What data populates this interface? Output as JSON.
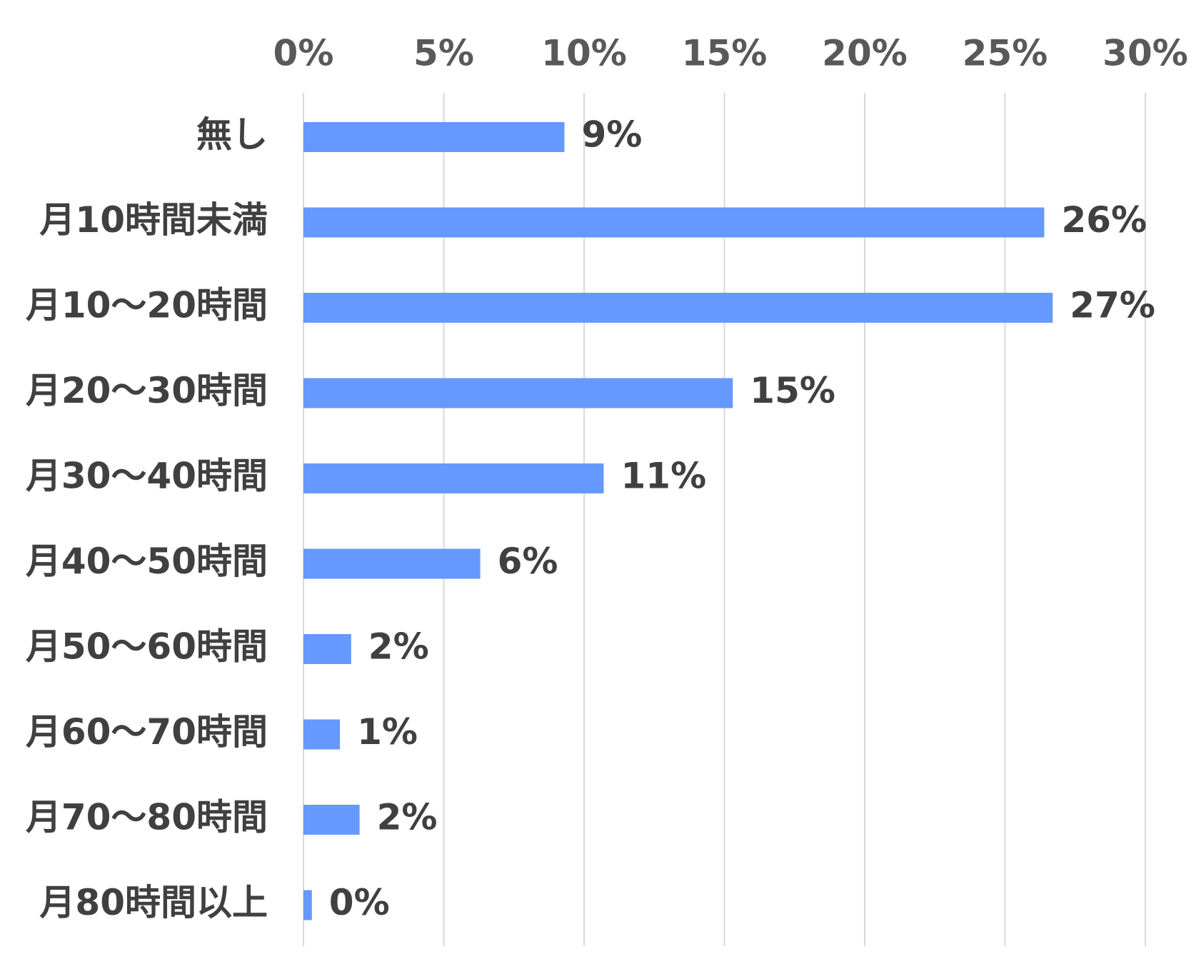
{
  "chart_data": {
    "type": "bar",
    "orientation": "horizontal",
    "categories": [
      "無し",
      "月10時間未満",
      "月10～20時間",
      "月20～30時間",
      "月30～40時間",
      "月40～50時間",
      "月50～60時間",
      "月60～70時間",
      "月70～80時間",
      "月80時間以上"
    ],
    "values": [
      9.3,
      26.4,
      26.7,
      15.3,
      10.7,
      6.3,
      1.7,
      1.3,
      2.0,
      0.3
    ],
    "data_labels": [
      "9%",
      "26%",
      "27%",
      "15%",
      "11%",
      "6%",
      "2%",
      "1%",
      "2%",
      "0%"
    ],
    "x_ticks": [
      0,
      5,
      10,
      15,
      20,
      25,
      30
    ],
    "x_tick_labels": [
      "0%",
      "5%",
      "10%",
      "15%",
      "20%",
      "25%",
      "30%"
    ],
    "xlim": [
      0,
      30
    ],
    "x_axis_position": "top",
    "grid": true,
    "bar_color": "#6699ff",
    "title": "",
    "xlabel": "",
    "ylabel": ""
  }
}
